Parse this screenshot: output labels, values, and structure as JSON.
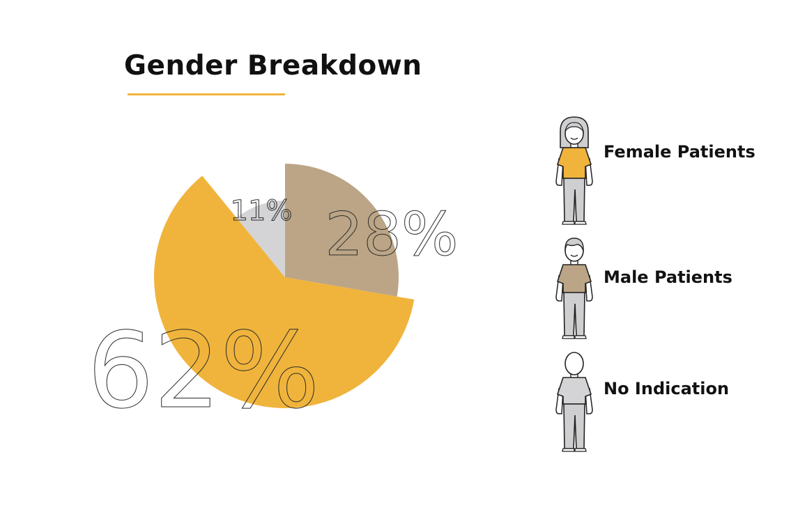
{
  "chart_data": {
    "type": "pie",
    "title": "Gender Breakdown",
    "slices": [
      {
        "label": "Male Patients",
        "value": 28,
        "display": "28%",
        "color": "#bba586"
      },
      {
        "label": "Female Patients",
        "value": 62,
        "display": "62%",
        "color": "#f0b43c"
      },
      {
        "label": "No Indication",
        "value": 11,
        "display": "11%",
        "color": "#d4d4d6"
      }
    ],
    "legend": {
      "placement": "right",
      "entries": [
        {
          "label": "Female Patients",
          "icon": "female-figure-icon",
          "shirt": "#f0b43c"
        },
        {
          "label": "Male Patients",
          "icon": "male-figure-icon",
          "shirt": "#bba586"
        },
        {
          "label": "No Indication",
          "icon": "neutral-figure-icon",
          "shirt": "#d4d4d6"
        }
      ]
    },
    "accent_color": "#f0b43c"
  }
}
